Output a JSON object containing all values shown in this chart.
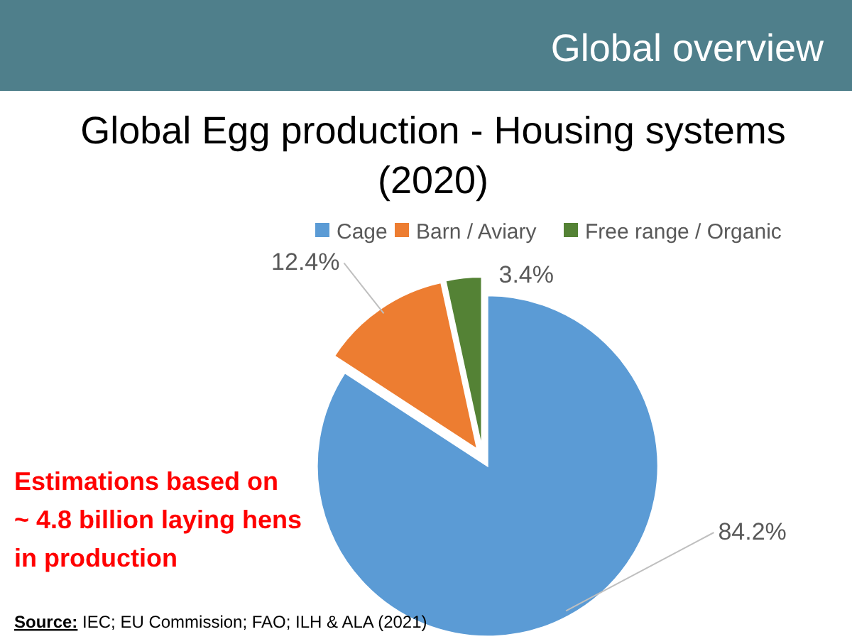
{
  "chart_data": {
    "type": "pie",
    "title": "Global Egg production - Housing systems\n(2020)",
    "subtitle": "Global overview",
    "categories": [
      "Cage",
      "Barn / Aviary",
      "Free range / Organic"
    ],
    "values": [
      84.2,
      12.4,
      3.4
    ],
    "colors": [
      "#5b9bd5",
      "#ed7d31",
      "#548235"
    ],
    "value_labels": [
      "84.2%",
      "12.4%",
      "3.4%"
    ],
    "legend": "top",
    "annotations": [
      "Estimations based on\n~ 4.8 billion laying hens\nin production",
      "Source: IEC; EU Commission; FAO; ILH & ALA (2021)"
    ]
  }
}
